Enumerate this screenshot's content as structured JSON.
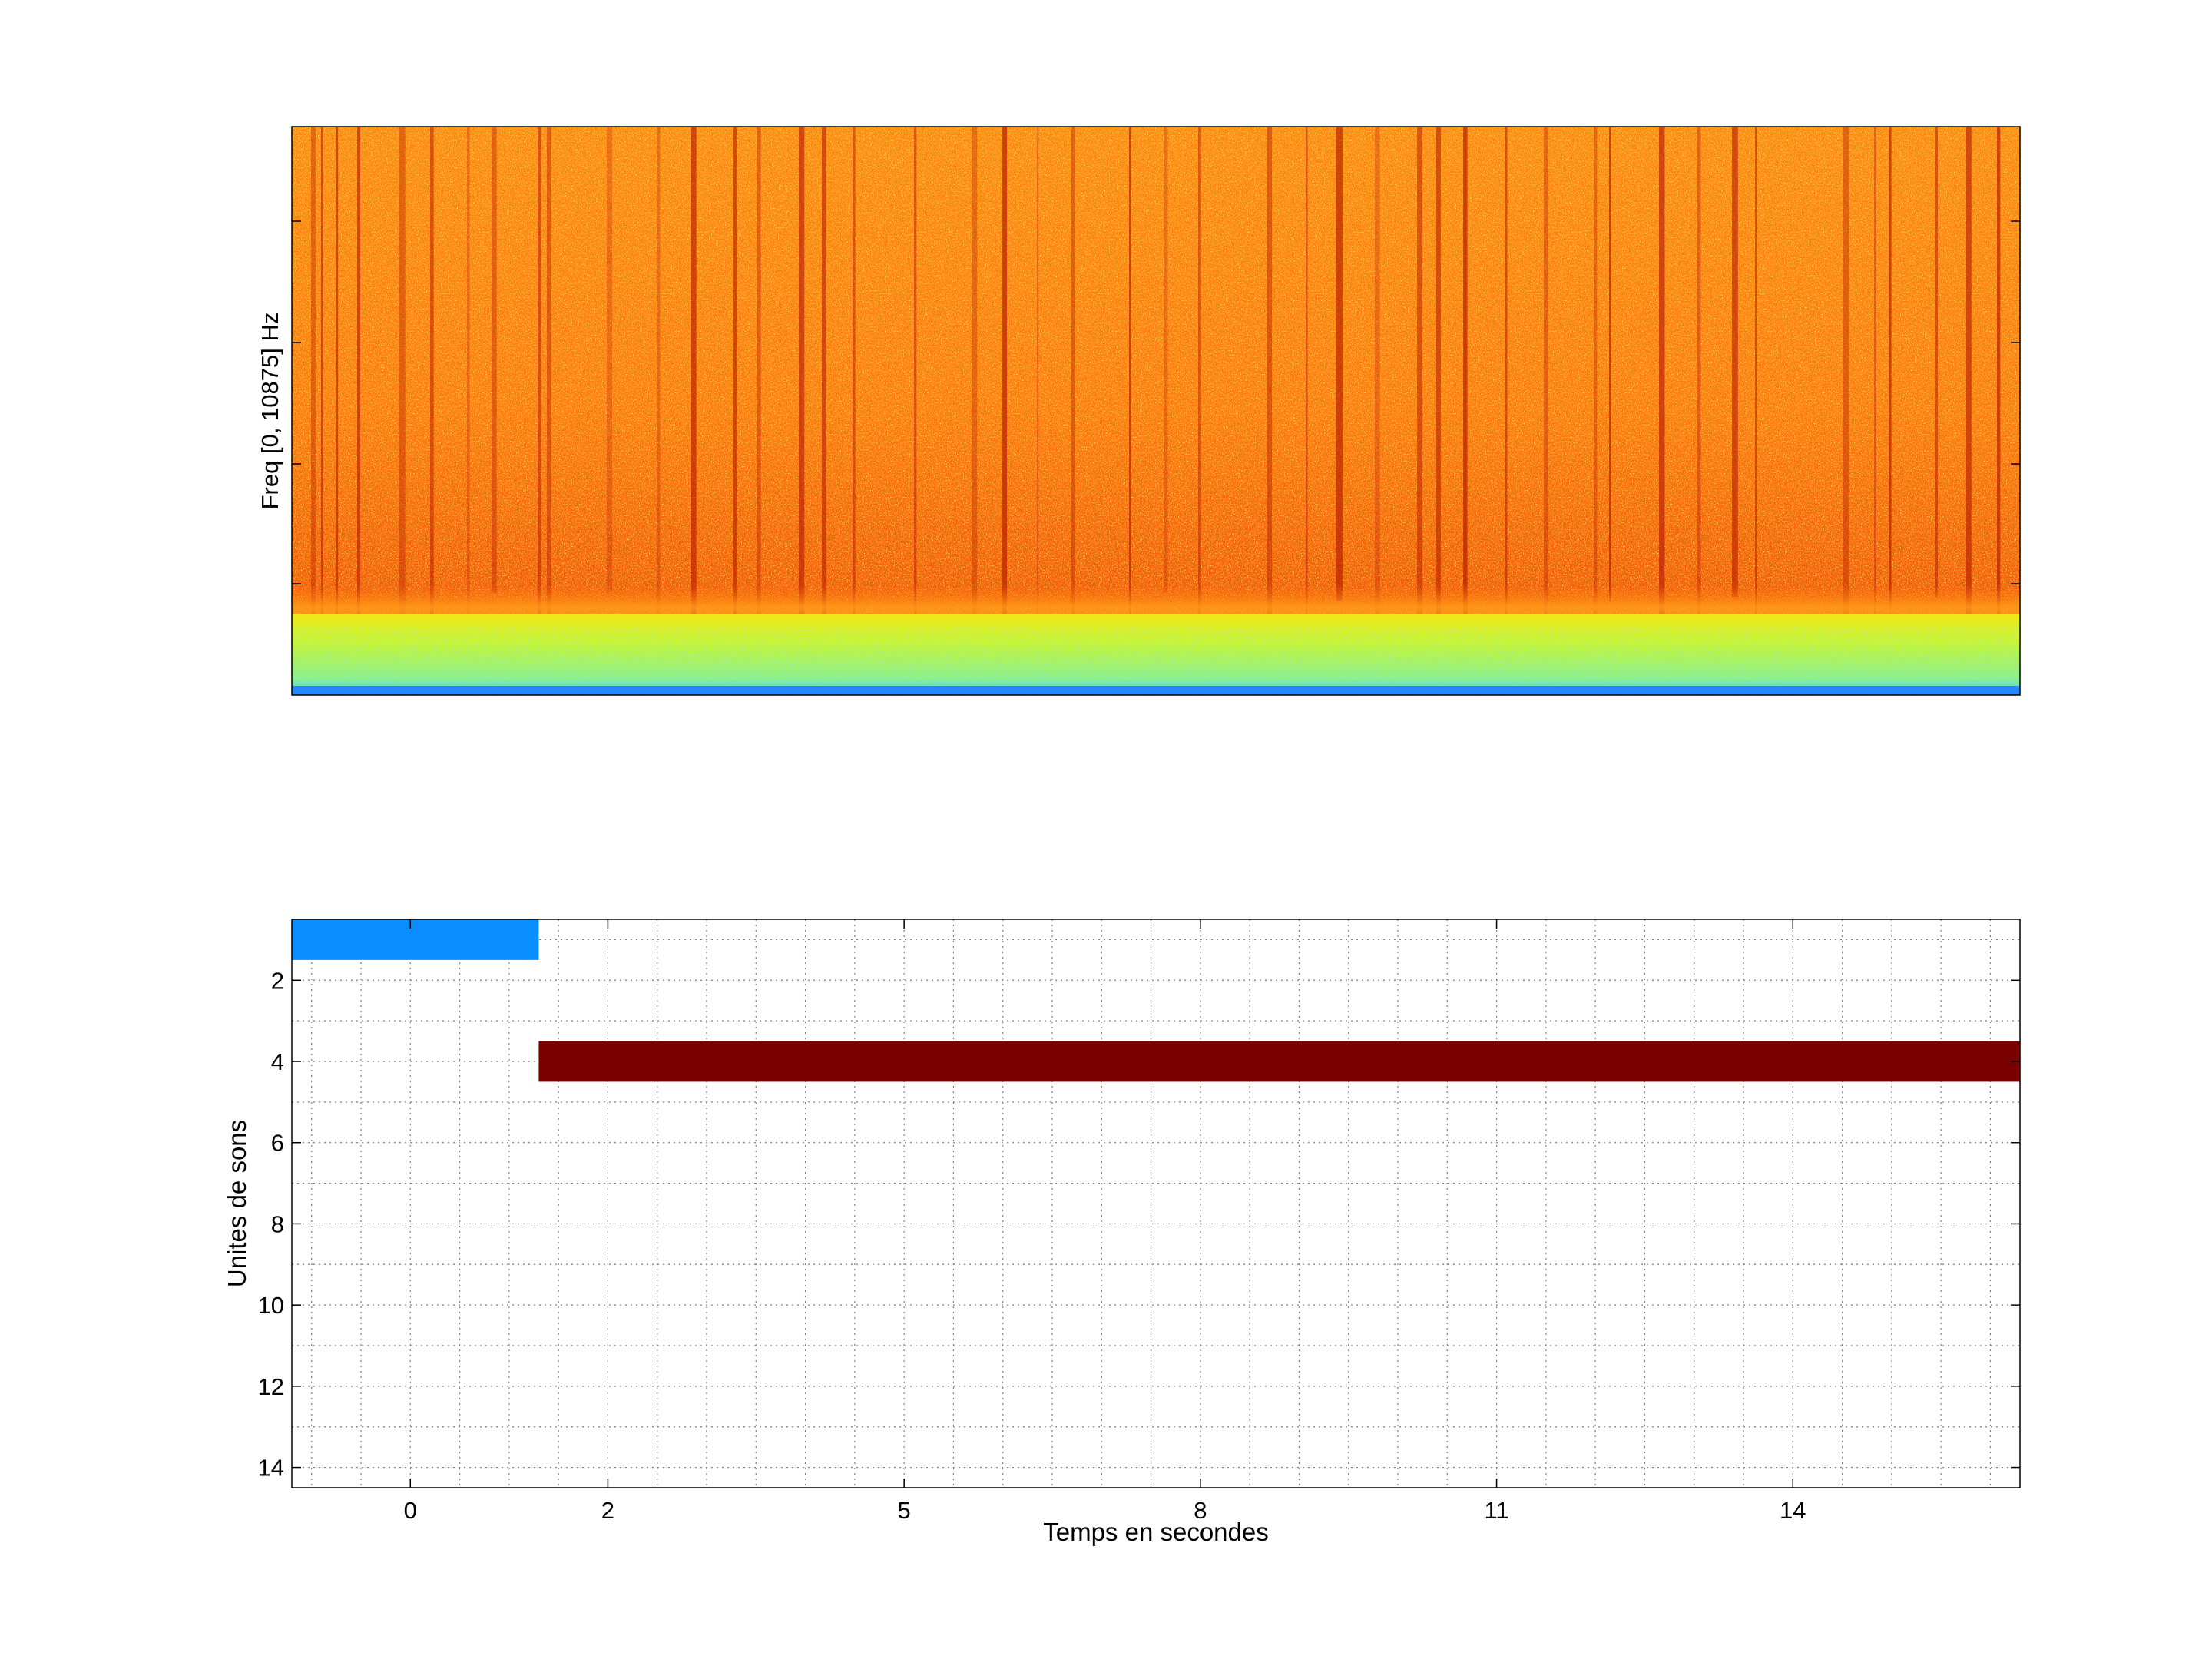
{
  "chart_data": [
    {
      "type": "heatmap",
      "title": "",
      "xlabel": "",
      "ylabel": "Freq [0, 10875] Hz",
      "colormap": "jet",
      "colors": {
        "low_band": "#c8f532",
        "low_band_floor": "#3cc8ff",
        "main_band": "#ff7a10",
        "main_band_bright": "#ffd21c",
        "dark_streak": "#b41800"
      }
    },
    {
      "type": "bar",
      "orientation": "horizontal",
      "title": "",
      "xlabel": "Temps en secondes",
      "ylabel": "Unites de sons",
      "xticks": [
        0,
        2,
        5,
        8,
        11,
        14
      ],
      "yticks": [
        2,
        4,
        6,
        8,
        10,
        12,
        14
      ],
      "xlim": [
        -1.2,
        16.3
      ],
      "ylim": [
        14.5,
        0.5
      ],
      "y_reversed": true,
      "grid": true,
      "segments": [
        {
          "unit": 1,
          "start": -1.2,
          "end": 1.3,
          "color": "#0a8eff"
        },
        {
          "unit": 4,
          "start": 1.3,
          "end": 16.3,
          "color": "#7a0000"
        }
      ]
    }
  ]
}
